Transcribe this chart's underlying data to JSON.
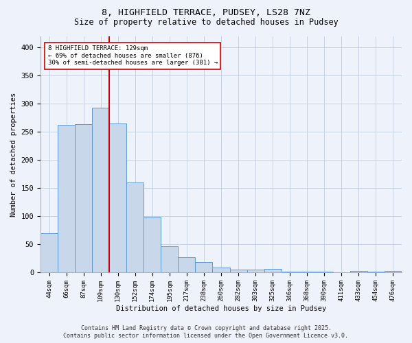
{
  "title_line1": "8, HIGHFIELD TERRACE, PUDSEY, LS28 7NZ",
  "title_line2": "Size of property relative to detached houses in Pudsey",
  "xlabel": "Distribution of detached houses by size in Pudsey",
  "ylabel": "Number of detached properties",
  "bar_labels": [
    "44sqm",
    "66sqm",
    "87sqm",
    "109sqm",
    "130sqm",
    "152sqm",
    "174sqm",
    "195sqm",
    "217sqm",
    "238sqm",
    "260sqm",
    "282sqm",
    "303sqm",
    "325sqm",
    "346sqm",
    "368sqm",
    "390sqm",
    "411sqm",
    "433sqm",
    "454sqm",
    "476sqm"
  ],
  "bar_values": [
    70,
    262,
    263,
    293,
    265,
    160,
    99,
    47,
    27,
    19,
    9,
    6,
    6,
    7,
    2,
    2,
    2,
    0,
    3,
    2,
    3
  ],
  "bar_color": "#c8d8ea",
  "bar_edge_color": "#5b9bd5",
  "vline_color": "#cc0000",
  "annotation_text": "8 HIGHFIELD TERRACE: 129sqm\n← 69% of detached houses are smaller (876)\n30% of semi-detached houses are larger (381) →",
  "annotation_box_color": "#ffffff",
  "annotation_box_edge": "#cc0000",
  "background_color": "#eef2fb",
  "grid_color": "#c0cce0",
  "footer_line1": "Contains HM Land Registry data © Crown copyright and database right 2025.",
  "footer_line2": "Contains public sector information licensed under the Open Government Licence v3.0.",
  "ylim": [
    0,
    420
  ],
  "yticks": [
    0,
    50,
    100,
    150,
    200,
    250,
    300,
    350,
    400
  ]
}
